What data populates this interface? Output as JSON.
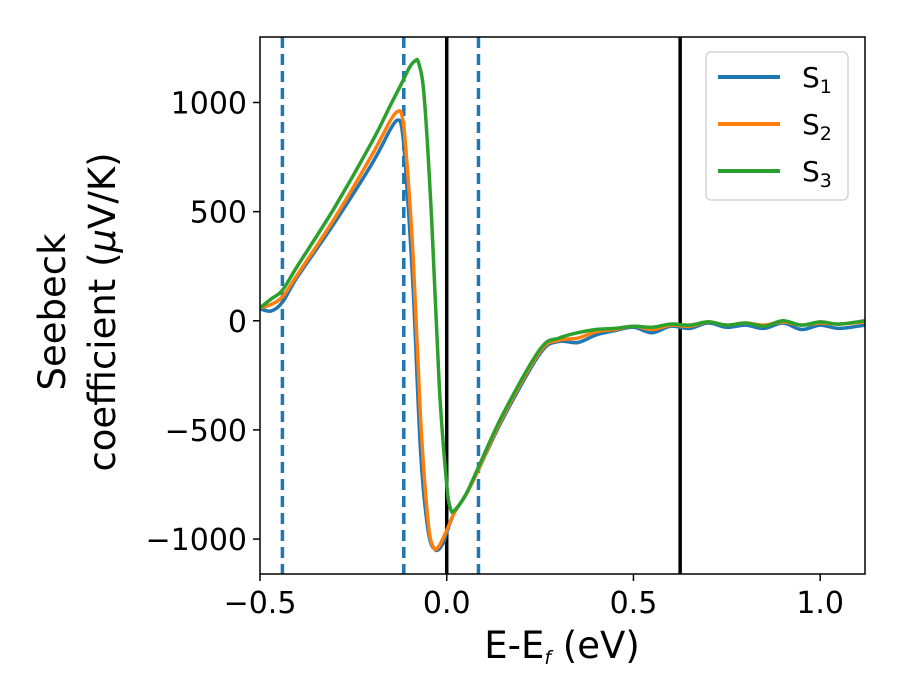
{
  "chart_data": {
    "type": "line",
    "xlabel": "E-E",
    "xlabel_sub": "f",
    "xlabel_unit": " (eV)",
    "ylabel_line1": "Seebeck",
    "ylabel_line2_prefix": "coefficient  (",
    "ylabel_mu": "μ",
    "ylabel_line2_suffix": "V/K)",
    "xlim": [
      -0.5,
      1.12
    ],
    "ylim": [
      -1160,
      1300
    ],
    "xticks": [
      -0.5,
      0.0,
      0.5,
      1.0
    ],
    "xtick_labels": [
      "−0.5",
      "0.0",
      "0.5",
      "1.0"
    ],
    "yticks": [
      -1000,
      -500,
      0,
      500,
      1000
    ],
    "ytick_labels": [
      "−1000",
      "−500",
      "0",
      "500",
      "1000"
    ],
    "legend_position": "top-right",
    "vlines_dashed": [
      -0.44,
      -0.115,
      0.085
    ],
    "vlines_solid": [
      0.0,
      0.625
    ],
    "vline_dashed_color": "#1f77b4",
    "vline_solid_color": "#000000",
    "series": [
      {
        "name": "S",
        "sub": "1",
        "color": "#1f77b4",
        "points": [
          [
            -0.5,
            55
          ],
          [
            -0.47,
            45
          ],
          [
            -0.44,
            85
          ],
          [
            -0.4,
            200
          ],
          [
            -0.3,
            450
          ],
          [
            -0.2,
            720
          ],
          [
            -0.15,
            880
          ],
          [
            -0.13,
            920
          ],
          [
            -0.12,
            880
          ],
          [
            -0.11,
            700
          ],
          [
            -0.09,
            150
          ],
          [
            -0.07,
            -600
          ],
          [
            -0.05,
            -960
          ],
          [
            -0.03,
            -1050
          ],
          [
            -0.01,
            -1020
          ],
          [
            0.0,
            -970
          ],
          [
            0.02,
            -880
          ],
          [
            0.05,
            -800
          ],
          [
            0.08,
            -700
          ],
          [
            0.15,
            -450
          ],
          [
            0.25,
            -150
          ],
          [
            0.3,
            -95
          ],
          [
            0.35,
            -100
          ],
          [
            0.4,
            -65
          ],
          [
            0.45,
            -45
          ],
          [
            0.5,
            -30
          ],
          [
            0.55,
            -55
          ],
          [
            0.6,
            -25
          ],
          [
            0.65,
            -35
          ],
          [
            0.7,
            -10
          ],
          [
            0.75,
            -30
          ],
          [
            0.8,
            -20
          ],
          [
            0.85,
            -35
          ],
          [
            0.9,
            -10
          ],
          [
            0.95,
            -40
          ],
          [
            1.0,
            -20
          ],
          [
            1.05,
            -35
          ],
          [
            1.12,
            -20
          ]
        ]
      },
      {
        "name": "S",
        "sub": "2",
        "color": "#ff7f0e",
        "points": [
          [
            -0.5,
            60
          ],
          [
            -0.47,
            75
          ],
          [
            -0.44,
            110
          ],
          [
            -0.4,
            210
          ],
          [
            -0.3,
            470
          ],
          [
            -0.2,
            760
          ],
          [
            -0.15,
            920
          ],
          [
            -0.13,
            960
          ],
          [
            -0.12,
            940
          ],
          [
            -0.11,
            800
          ],
          [
            -0.09,
            300
          ],
          [
            -0.07,
            -450
          ],
          [
            -0.05,
            -920
          ],
          [
            -0.035,
            -1040
          ],
          [
            -0.02,
            -1030
          ],
          [
            0.0,
            -960
          ],
          [
            0.02,
            -880
          ],
          [
            0.05,
            -800
          ],
          [
            0.08,
            -700
          ],
          [
            0.15,
            -440
          ],
          [
            0.25,
            -140
          ],
          [
            0.3,
            -90
          ],
          [
            0.35,
            -80
          ],
          [
            0.4,
            -50
          ],
          [
            0.45,
            -40
          ],
          [
            0.5,
            -25
          ],
          [
            0.55,
            -40
          ],
          [
            0.6,
            -20
          ],
          [
            0.65,
            -25
          ],
          [
            0.7,
            -5
          ],
          [
            0.75,
            -20
          ],
          [
            0.8,
            -10
          ],
          [
            0.85,
            -20
          ],
          [
            0.9,
            -5
          ],
          [
            0.95,
            -20
          ],
          [
            1.0,
            -10
          ],
          [
            1.05,
            -15
          ],
          [
            1.12,
            -5
          ]
        ]
      },
      {
        "name": "S",
        "sub": "3",
        "color": "#2ca02c",
        "points": [
          [
            -0.5,
            60
          ],
          [
            -0.47,
            100
          ],
          [
            -0.44,
            140
          ],
          [
            -0.4,
            250
          ],
          [
            -0.3,
            520
          ],
          [
            -0.2,
            820
          ],
          [
            -0.15,
            990
          ],
          [
            -0.12,
            1090
          ],
          [
            -0.1,
            1160
          ],
          [
            -0.085,
            1190
          ],
          [
            -0.075,
            1180
          ],
          [
            -0.06,
            1020
          ],
          [
            -0.04,
            450
          ],
          [
            -0.02,
            -300
          ],
          [
            0.0,
            -750
          ],
          [
            0.01,
            -860
          ],
          [
            0.02,
            -870
          ],
          [
            0.05,
            -800
          ],
          [
            0.08,
            -690
          ],
          [
            0.15,
            -430
          ],
          [
            0.25,
            -130
          ],
          [
            0.3,
            -80
          ],
          [
            0.35,
            -55
          ],
          [
            0.4,
            -40
          ],
          [
            0.45,
            -35
          ],
          [
            0.5,
            -25
          ],
          [
            0.55,
            -30
          ],
          [
            0.6,
            -15
          ],
          [
            0.65,
            -20
          ],
          [
            0.7,
            -5
          ],
          [
            0.75,
            -20
          ],
          [
            0.8,
            -10
          ],
          [
            0.85,
            -25
          ],
          [
            0.9,
            0
          ],
          [
            0.95,
            -20
          ],
          [
            1.0,
            -5
          ],
          [
            1.05,
            -15
          ],
          [
            1.12,
            0
          ]
        ]
      }
    ]
  }
}
